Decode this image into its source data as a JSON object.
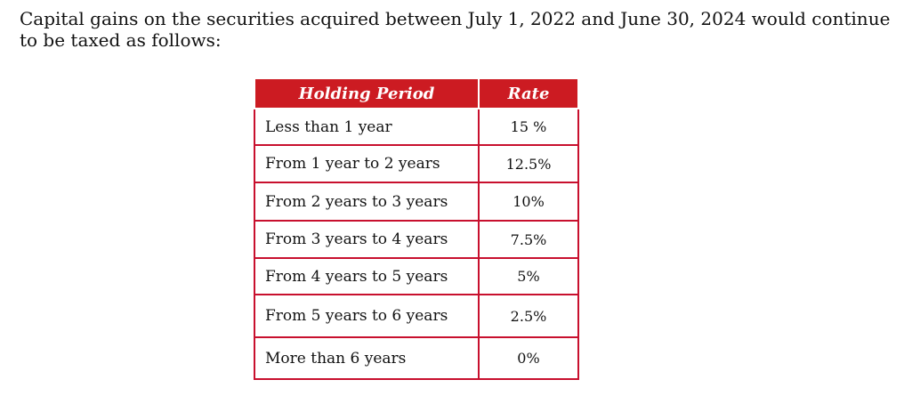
{
  "intro_text": "Capital gains on the securities acquired between July 1, 2022 and June 30, 2024 would continue to be taxed as follows:",
  "table": {
    "headers": {
      "holding_period": "Holding Period",
      "rate": "Rate"
    },
    "rows": [
      {
        "period": "Less than 1 year",
        "rate": "15 %"
      },
      {
        "period": "From 1 year to 2 years",
        "rate": "12.5%"
      },
      {
        "period": "From 2 years to 3 years",
        "rate": "10%"
      },
      {
        "period": "From 3 years to 4 years",
        "rate": "7.5%"
      },
      {
        "period": "From 4 years to 5 years",
        "rate": "5%"
      },
      {
        "period": "From 5 years to 6 years",
        "rate": "2.5%"
      },
      {
        "period": "More than 6 years",
        "rate": "0%"
      }
    ],
    "colors": {
      "header_background": "#cc1b22",
      "header_text": "#ffffff",
      "border": "#c8102e"
    }
  }
}
